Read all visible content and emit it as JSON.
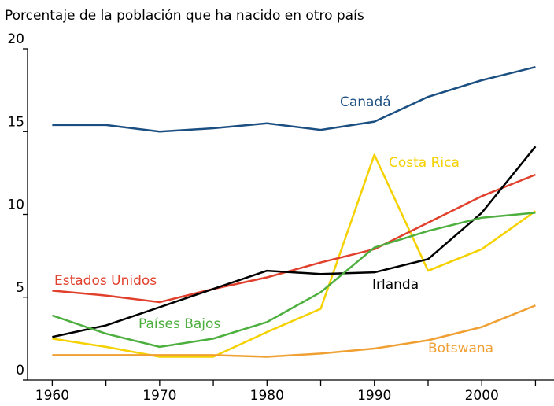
{
  "chart_data": {
    "type": "line",
    "title": "Porcentaje de la población que ha nacido en otro país",
    "x": [
      1960,
      1965,
      1970,
      1975,
      1980,
      1985,
      1990,
      1995,
      2000,
      2005
    ],
    "series": [
      {
        "name": "Canadá",
        "color": "#1b4f82",
        "values": [
          15.4,
          15.4,
          15.0,
          15.2,
          15.5,
          15.1,
          15.6,
          17.1,
          18.1,
          18.9
        ]
      },
      {
        "name": "Costa Rica",
        "color": "#f5d100",
        "values": [
          2.5,
          2.0,
          1.4,
          1.4,
          2.9,
          4.3,
          13.6,
          6.6,
          7.9,
          10.2
        ]
      },
      {
        "name": "Estados Unidos",
        "color": "#e0402c",
        "values": [
          5.4,
          5.1,
          4.7,
          5.5,
          6.2,
          7.1,
          7.9,
          9.5,
          11.1,
          12.4
        ]
      },
      {
        "name": "Irlanda",
        "color": "#000000",
        "values": [
          2.6,
          3.3,
          4.4,
          5.5,
          6.6,
          6.4,
          6.5,
          7.3,
          10.1,
          14.1
        ]
      },
      {
        "name": "Países Bajos",
        "color": "#4caf3e",
        "values": [
          3.9,
          2.8,
          2.0,
          2.5,
          3.5,
          5.3,
          8.0,
          9.0,
          9.8,
          10.1
        ]
      },
      {
        "name": "Botswana",
        "color": "#f0a032",
        "values": [
          1.5,
          1.5,
          1.5,
          1.5,
          1.4,
          1.6,
          1.9,
          2.4,
          3.2,
          4.5
        ]
      }
    ],
    "xlim": [
      1957.7,
      2006.8
    ],
    "xticks": [
      1960,
      1970,
      1980,
      1990,
      2000
    ],
    "minor_xticks": [
      1965,
      1975,
      1985,
      1995,
      2005
    ],
    "ylim": [
      0,
      20
    ],
    "yticks": [
      0,
      5,
      10,
      15,
      20
    ],
    "grid": false
  }
}
